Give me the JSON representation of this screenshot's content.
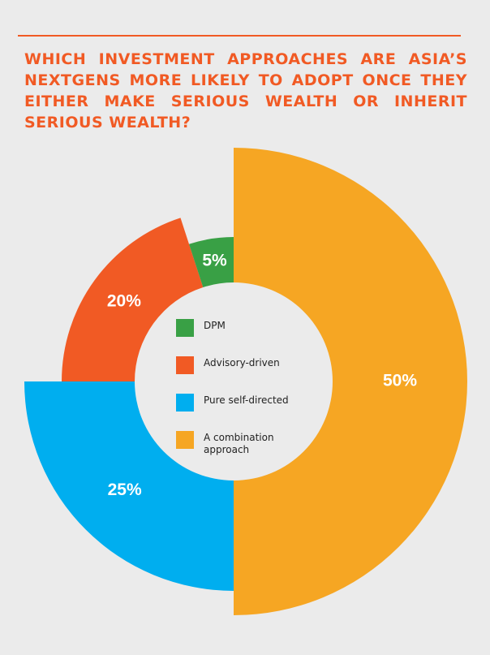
{
  "chart_data": {
    "type": "pie",
    "title": "WHICH INVESTMENT APPROACHES ARE ASIA’S NEXTGENS MORE LIKELY TO ADOPT ONCE THEY EITHER MAKE SERIOUS WEALTH OR INHERIT SERIOUS WEALTH?",
    "categories": [
      "A combination approach",
      "Pure self-directed",
      "Advisory-driven",
      "DPM"
    ],
    "values": [
      50,
      25,
      20,
      5
    ],
    "value_labels": [
      "50%",
      "25%",
      "20%",
      "5%"
    ],
    "colors": [
      "#f6a623",
      "#00aeef",
      "#f15a24",
      "#39a045"
    ]
  }
}
